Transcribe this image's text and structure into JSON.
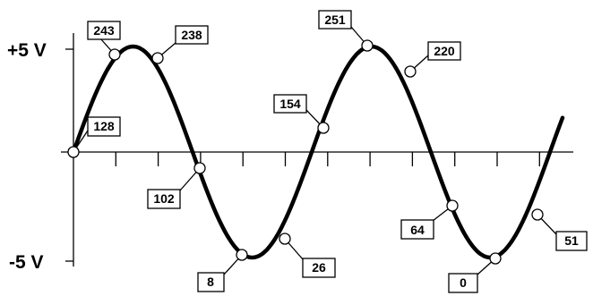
{
  "y_axis": {
    "top_label": "+5 V",
    "bottom_label": "-5 V"
  },
  "samples": [
    {
      "value": "128"
    },
    {
      "value": "243"
    },
    {
      "value": "238"
    },
    {
      "value": "102"
    },
    {
      "value": "8"
    },
    {
      "value": "26"
    },
    {
      "value": "154"
    },
    {
      "value": "251"
    },
    {
      "value": "220"
    },
    {
      "value": "64"
    },
    {
      "value": "0"
    },
    {
      "value": "51"
    }
  ],
  "colors": {
    "line": "#000000",
    "background": "#ffffff",
    "marker_fill": "#ffffff"
  }
}
